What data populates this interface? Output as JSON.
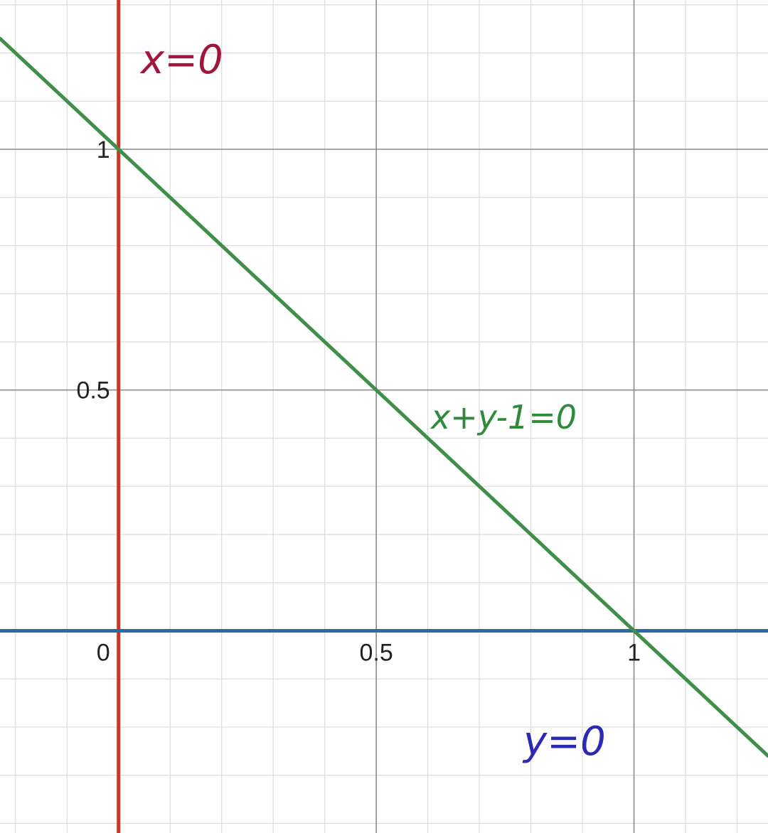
{
  "chart_data": {
    "type": "line",
    "xlim": [
      -0.23,
      1.26
    ],
    "ylim": [
      -0.42,
      1.31
    ],
    "grid": true,
    "minor_step": 0.1,
    "major_step": 0.5,
    "x_tick_labels": [
      {
        "value": 0,
        "label": "0"
      },
      {
        "value": 0.5,
        "label": "0.5"
      },
      {
        "value": 1,
        "label": "1"
      }
    ],
    "y_tick_labels": [
      {
        "value": 0.5,
        "label": "0.5"
      },
      {
        "value": 1,
        "label": "1"
      }
    ],
    "series": [
      {
        "id": "line-x0",
        "kind": "vertical",
        "x": 0,
        "color": "#c0392b"
      },
      {
        "id": "line-y0",
        "kind": "horizontal",
        "y": 0,
        "color": "#2c6aa0"
      },
      {
        "id": "line-xy",
        "kind": "function",
        "slope": -1,
        "intercept": 1,
        "color": "#3f8f4a"
      }
    ],
    "annotations": [
      {
        "id": "label-x0",
        "text": "x=0",
        "color": "#a0173b"
      },
      {
        "id": "label-xy",
        "text": "x+y-1=0",
        "color": "#2e8b3a"
      },
      {
        "id": "label-y0",
        "text": "y=0",
        "color": "#2a2ab5"
      }
    ]
  }
}
